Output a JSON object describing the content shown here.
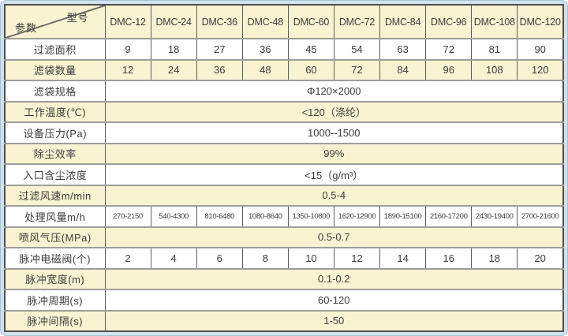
{
  "table": {
    "corner": {
      "top_label": "型号",
      "bottom_label": "参数"
    },
    "columns": [
      "DMC-12",
      "DMC-24",
      "DMC-36",
      "DMC-48",
      "DMC-60",
      "DMC-72",
      "DMC-84",
      "DMC-96",
      "DMC-108",
      "DMC-120"
    ],
    "rows": [
      {
        "label": "过滤面积",
        "type": "cells",
        "values": [
          "9",
          "18",
          "27",
          "36",
          "45",
          "54",
          "63",
          "72",
          "81",
          "90"
        ]
      },
      {
        "label": "滤袋数量",
        "type": "cells",
        "values": [
          "12",
          "24",
          "36",
          "48",
          "60",
          "72",
          "84",
          "96",
          "108",
          "120"
        ]
      },
      {
        "label": "滤袋规格",
        "type": "span",
        "value": "Φ120×2000"
      },
      {
        "label": "工作温度(℃)",
        "type": "span",
        "value": "<120（涤纶）"
      },
      {
        "label": "设备压力(Pa)",
        "type": "span",
        "value": "1000--1500"
      },
      {
        "label": "除尘效率",
        "type": "span",
        "value": "99%"
      },
      {
        "label": "入口含尘浓度",
        "type": "span",
        "value": "<15（g/m³）"
      },
      {
        "label": "过滤风速m/min",
        "type": "span",
        "value": "0.5-4"
      },
      {
        "label": "处理风量m/h",
        "type": "cells",
        "small": true,
        "values": [
          "270-2150",
          "540-4300",
          "810-6480",
          "1080-8640",
          "1350-10800",
          "1620-12900",
          "1890-15100",
          "2160-17200",
          "2430-19400",
          "2700-21600"
        ]
      },
      {
        "label": "喷风气压(MPa)",
        "type": "span",
        "value": "0.5-0.7"
      },
      {
        "label": "脉冲电磁阀(个)",
        "type": "cells",
        "values": [
          "2",
          "4",
          "6",
          "8",
          "10",
          "12",
          "14",
          "16",
          "18",
          "20"
        ]
      },
      {
        "label": "脉冲宽度(m)",
        "type": "span",
        "value": "0.1-0.2"
      },
      {
        "label": "脉冲周期(s)",
        "type": "span",
        "value": "60-120"
      },
      {
        "label": "脉冲间隔(s)",
        "type": "span",
        "value": "1-50"
      }
    ],
    "colors": {
      "row_cream": "#f9f3d1",
      "row_white": "#ffffff",
      "frame_blue": "#d2e2ec",
      "border_dark": "#4e4e4e",
      "border_light": "#9d9d9d",
      "text": "#3c3c3c"
    }
  }
}
